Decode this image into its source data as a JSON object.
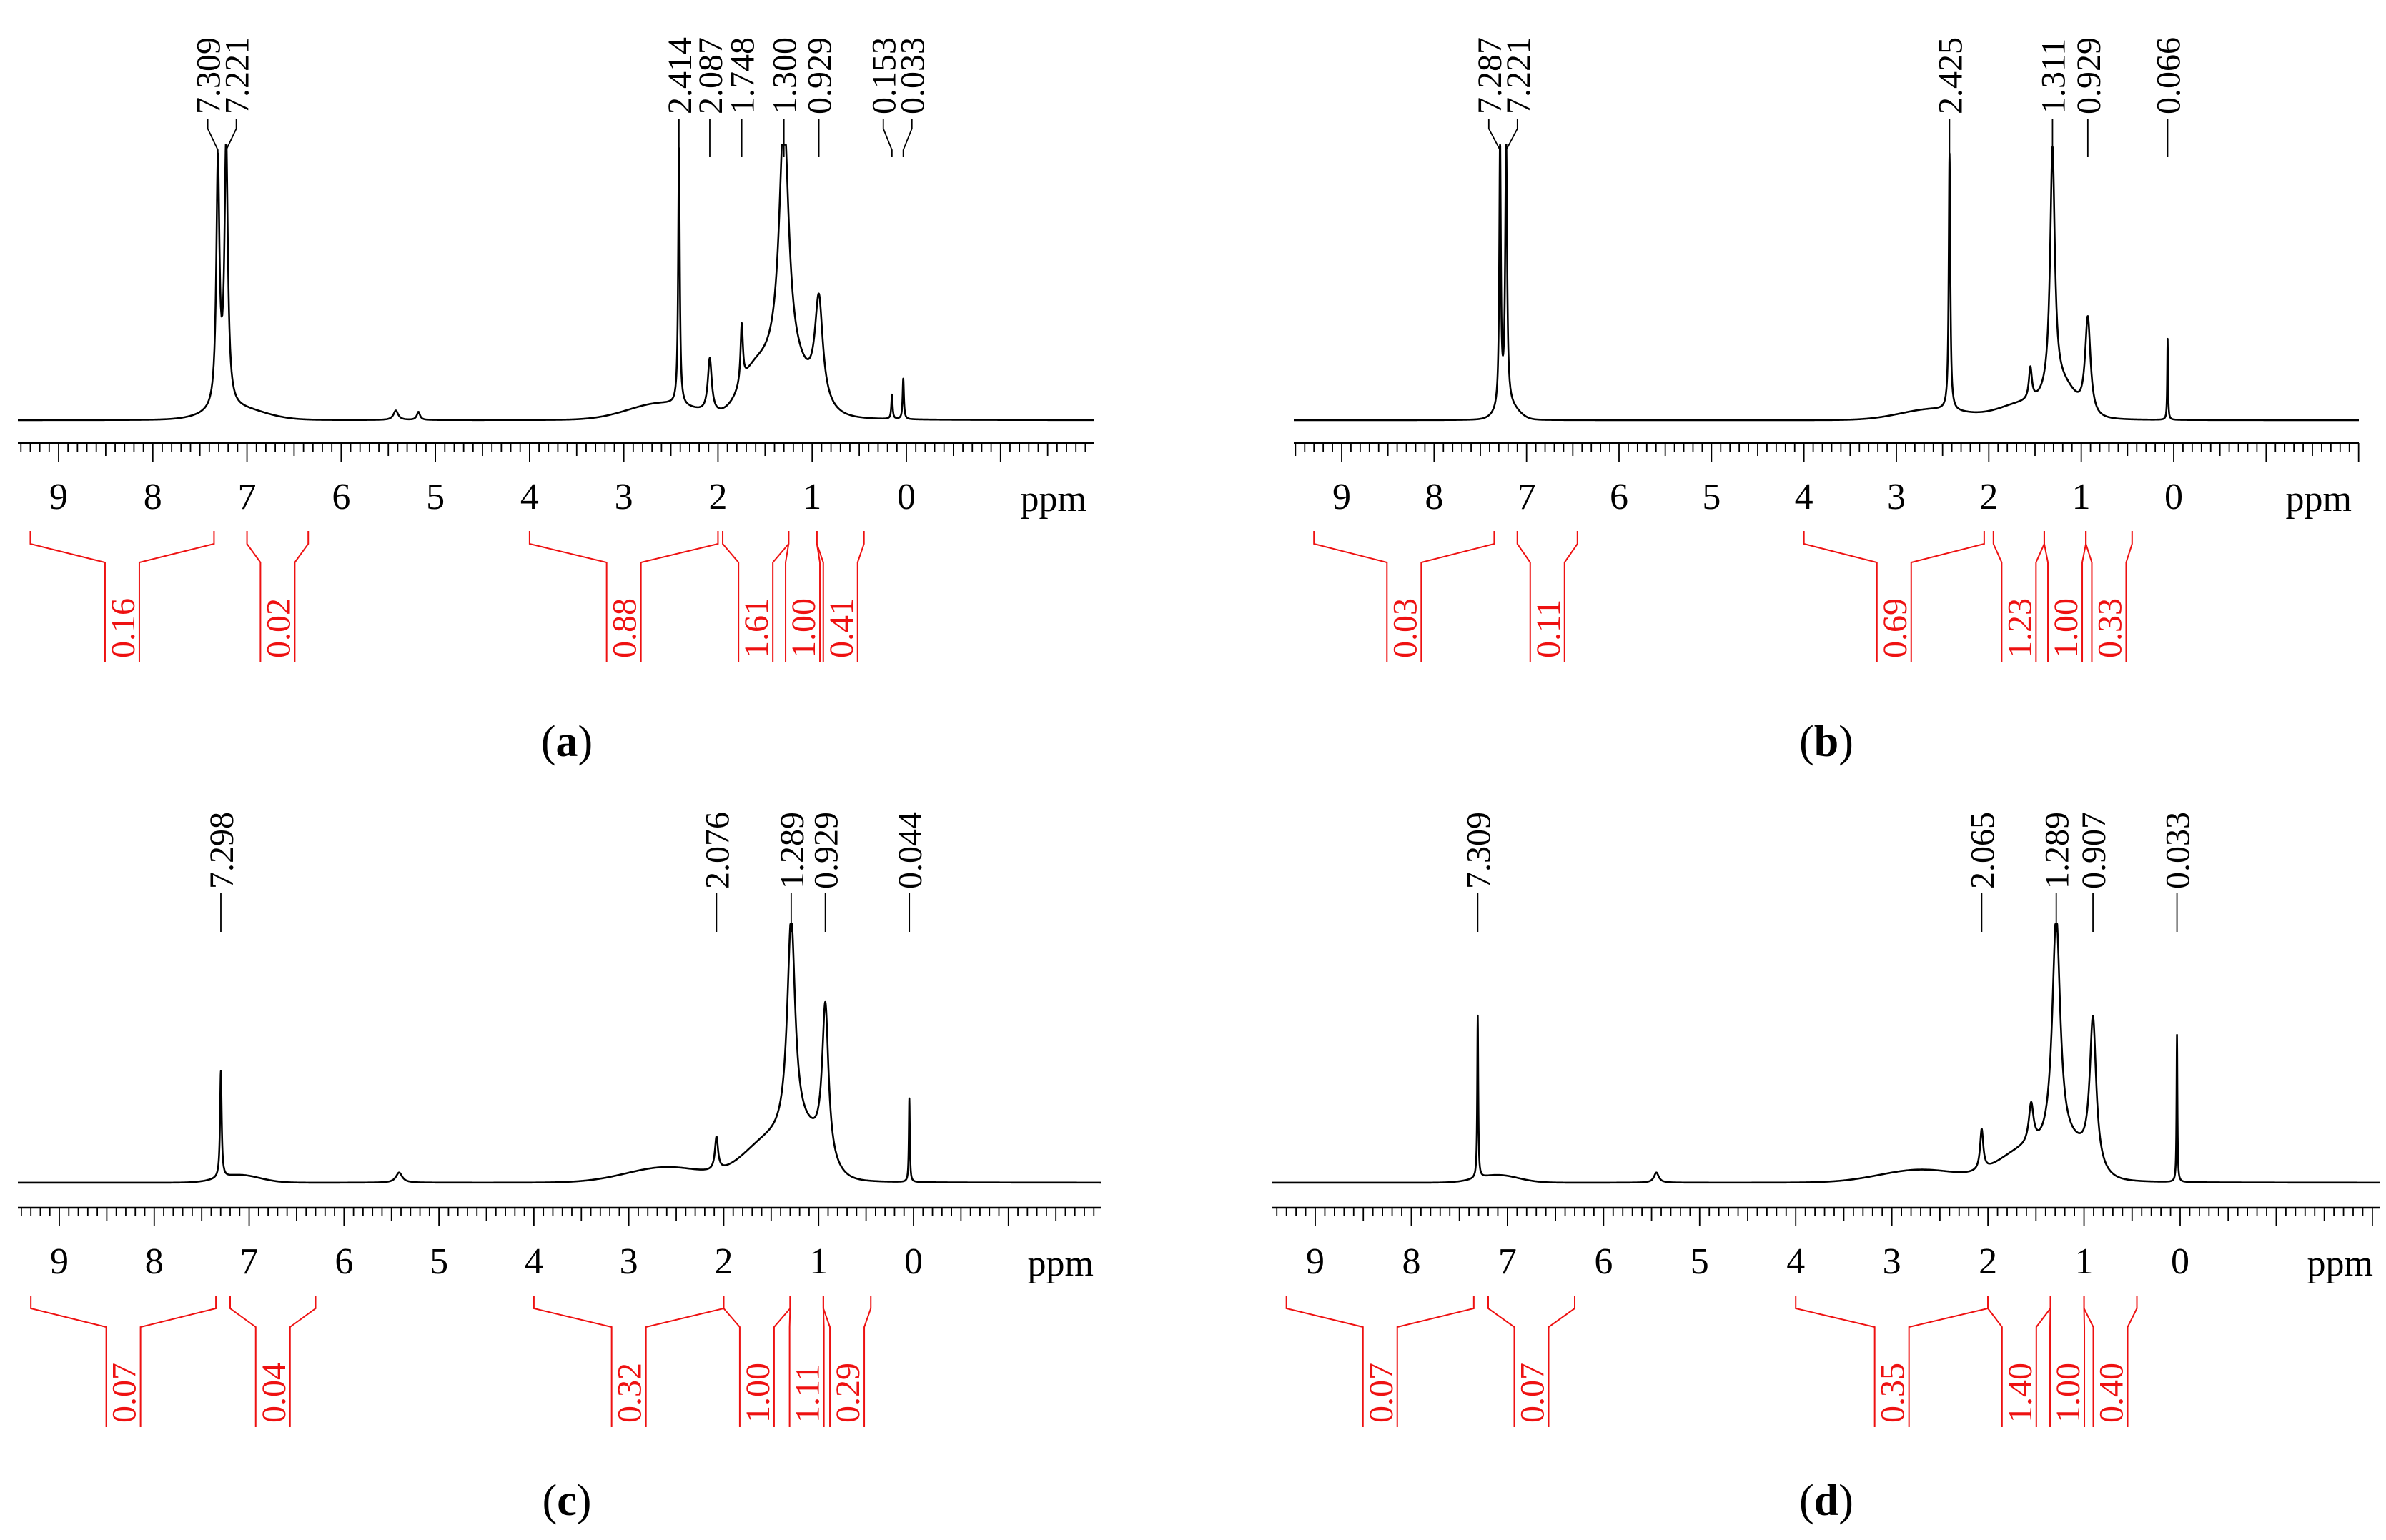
{
  "figure": {
    "axis_unit": "ppm",
    "tick_labels": [
      "9",
      "8",
      "7",
      "6",
      "5",
      "4",
      "3",
      "2",
      "1",
      "0"
    ],
    "colors": {
      "trace": "#000000",
      "integral": "#ee1111",
      "axis": "#000000"
    }
  },
  "chart_data": [
    {
      "type": "line",
      "panel": "a",
      "xlabel": "ppm",
      "xlim": [
        9.4,
        -2.0
      ],
      "x_reversed": true,
      "ticks": [
        9,
        8,
        7,
        6,
        5,
        4,
        3,
        2,
        1,
        0
      ],
      "peak_labels": [
        "7.309",
        "7.221",
        "2.414",
        "2.087",
        "1.748",
        "1.300",
        "0.929",
        "0.153",
        "0.033"
      ],
      "peaks": [
        {
          "ppm": 7.309,
          "height": 0.9,
          "width": 0.02
        },
        {
          "ppm": 7.221,
          "height": 0.97,
          "width": 0.022
        },
        {
          "ppm": 5.42,
          "height": 0.035,
          "width": 0.03
        },
        {
          "ppm": 5.18,
          "height": 0.03,
          "width": 0.02
        },
        {
          "ppm": 2.414,
          "height": 0.95,
          "width": 0.01
        },
        {
          "ppm": 2.087,
          "height": 0.2,
          "width": 0.025
        },
        {
          "ppm": 1.748,
          "height": 0.22,
          "width": 0.015
        },
        {
          "ppm": 1.3,
          "height": 0.92,
          "width": 0.06
        },
        {
          "ppm": 0.929,
          "height": 0.38,
          "width": 0.05
        },
        {
          "ppm": 0.153,
          "height": 0.09,
          "width": 0.008
        },
        {
          "ppm": 0.033,
          "height": 0.15,
          "width": 0.008
        }
      ],
      "humps": [
        {
          "ppm": 7.1,
          "height": 0.04,
          "width": 0.4
        },
        {
          "ppm": 2.6,
          "height": 0.06,
          "width": 0.5
        },
        {
          "ppm": 1.3,
          "height": 0.2,
          "width": 0.35
        },
        {
          "ppm": 1.65,
          "height": 0.1,
          "width": 0.2
        }
      ],
      "integrals": [
        {
          "label": "0.16",
          "from": 9.3,
          "to": 7.35
        },
        {
          "label": "0.02",
          "from": 7.0,
          "to": 6.35
        },
        {
          "label": "0.88",
          "from": 4.0,
          "to": 2.0
        },
        {
          "label": "1.61",
          "from": 1.95,
          "to": 1.25
        },
        {
          "label": "1.00",
          "from": 1.25,
          "to": 0.95
        },
        {
          "label": "0.41",
          "from": 0.95,
          "to": 0.45
        }
      ]
    },
    {
      "type": "line",
      "panel": "b",
      "xlabel": "ppm",
      "xlim": [
        9.4,
        -2.0
      ],
      "x_reversed": true,
      "ticks": [
        9,
        8,
        7,
        6,
        5,
        4,
        3,
        2,
        1,
        0
      ],
      "peak_labels": [
        "7.287",
        "7.221",
        "2.425",
        "1.311",
        "0.929",
        "0.066"
      ],
      "peaks": [
        {
          "ppm": 7.287,
          "height": 0.98,
          "width": 0.01
        },
        {
          "ppm": 7.221,
          "height": 0.98,
          "width": 0.012
        },
        {
          "ppm": 2.425,
          "height": 0.95,
          "width": 0.01
        },
        {
          "ppm": 1.311,
          "height": 0.9,
          "width": 0.03
        },
        {
          "ppm": 1.55,
          "height": 0.12,
          "width": 0.02
        },
        {
          "ppm": 0.929,
          "height": 0.36,
          "width": 0.035
        },
        {
          "ppm": 0.066,
          "height": 0.3,
          "width": 0.005
        }
      ],
      "humps": [
        {
          "ppm": 7.2,
          "height": 0.05,
          "width": 0.15
        },
        {
          "ppm": 2.6,
          "height": 0.04,
          "width": 0.5
        },
        {
          "ppm": 1.6,
          "height": 0.06,
          "width": 0.4
        },
        {
          "ppm": 1.2,
          "height": 0.1,
          "width": 0.2
        }
      ],
      "integrals": [
        {
          "label": "0.03",
          "from": 9.3,
          "to": 7.35
        },
        {
          "label": "0.11",
          "from": 7.1,
          "to": 6.45
        },
        {
          "label": "0.69",
          "from": 4.0,
          "to": 2.05
        },
        {
          "label": "1.23",
          "from": 1.95,
          "to": 1.4
        },
        {
          "label": "1.00",
          "from": 1.4,
          "to": 0.95
        },
        {
          "label": "0.33",
          "from": 0.95,
          "to": 0.45
        }
      ]
    },
    {
      "type": "line",
      "panel": "c",
      "xlabel": "ppm",
      "xlim": [
        9.4,
        -2.0
      ],
      "x_reversed": true,
      "ticks": [
        9,
        8,
        7,
        6,
        5,
        4,
        3,
        2,
        1,
        0
      ],
      "peak_labels": [
        "7.298",
        "2.076",
        "1.289",
        "0.929",
        "0.044"
      ],
      "peaks": [
        {
          "ppm": 7.298,
          "height": 0.42,
          "width": 0.01
        },
        {
          "ppm": 5.42,
          "height": 0.04,
          "width": 0.04
        },
        {
          "ppm": 2.076,
          "height": 0.13,
          "width": 0.02
        },
        {
          "ppm": 1.289,
          "height": 0.85,
          "width": 0.05
        },
        {
          "ppm": 0.929,
          "height": 0.6,
          "width": 0.04
        },
        {
          "ppm": 0.044,
          "height": 0.33,
          "width": 0.006
        }
      ],
      "humps": [
        {
          "ppm": 7.1,
          "height": 0.03,
          "width": 0.3
        },
        {
          "ppm": 2.6,
          "height": 0.06,
          "width": 0.6
        },
        {
          "ppm": 1.5,
          "height": 0.16,
          "width": 0.4
        },
        {
          "ppm": 1.1,
          "height": 0.12,
          "width": 0.25
        }
      ],
      "integrals": [
        {
          "label": "0.07",
          "from": 9.3,
          "to": 7.35
        },
        {
          "label": "0.04",
          "from": 7.2,
          "to": 6.3
        },
        {
          "label": "0.32",
          "from": 4.0,
          "to": 2.0
        },
        {
          "label": "1.00",
          "from": 2.0,
          "to": 1.3
        },
        {
          "label": "1.11",
          "from": 1.3,
          "to": 0.95
        },
        {
          "label": "0.29",
          "from": 0.95,
          "to": 0.45
        }
      ]
    },
    {
      "type": "line",
      "panel": "d",
      "xlabel": "ppm",
      "xlim": [
        9.4,
        -2.0
      ],
      "x_reversed": true,
      "ticks": [
        9,
        8,
        7,
        6,
        5,
        4,
        3,
        2,
        1,
        0
      ],
      "peak_labels": [
        "7.309",
        "2.065",
        "1.289",
        "0.907",
        "0.033"
      ],
      "peaks": [
        {
          "ppm": 7.309,
          "height": 0.64,
          "width": 0.006
        },
        {
          "ppm": 5.45,
          "height": 0.04,
          "width": 0.03
        },
        {
          "ppm": 2.065,
          "height": 0.16,
          "width": 0.02
        },
        {
          "ppm": 1.55,
          "height": 0.16,
          "width": 0.03
        },
        {
          "ppm": 1.289,
          "height": 0.92,
          "width": 0.05
        },
        {
          "ppm": 0.907,
          "height": 0.58,
          "width": 0.04
        },
        {
          "ppm": 0.033,
          "height": 0.58,
          "width": 0.005
        }
      ],
      "humps": [
        {
          "ppm": 7.1,
          "height": 0.03,
          "width": 0.3
        },
        {
          "ppm": 2.7,
          "height": 0.05,
          "width": 0.6
        },
        {
          "ppm": 1.6,
          "height": 0.12,
          "width": 0.4
        },
        {
          "ppm": 1.1,
          "height": 0.1,
          "width": 0.25
        }
      ],
      "integrals": [
        {
          "label": "0.07",
          "from": 9.3,
          "to": 7.35
        },
        {
          "label": "0.07",
          "from": 7.2,
          "to": 6.3
        },
        {
          "label": "0.35",
          "from": 4.0,
          "to": 2.0
        },
        {
          "label": "1.40",
          "from": 2.0,
          "to": 1.35
        },
        {
          "label": "1.00",
          "from": 1.35,
          "to": 1.0
        },
        {
          "label": "0.40",
          "from": 1.0,
          "to": 0.45
        }
      ]
    }
  ],
  "panel_labels": [
    {
      "letter": "a",
      "open": "(",
      "close": ")"
    },
    {
      "letter": "b",
      "open": "(",
      "close": ")"
    },
    {
      "letter": "c",
      "open": "(",
      "close": ")"
    },
    {
      "letter": "d",
      "open": "(",
      "close": ")"
    }
  ]
}
